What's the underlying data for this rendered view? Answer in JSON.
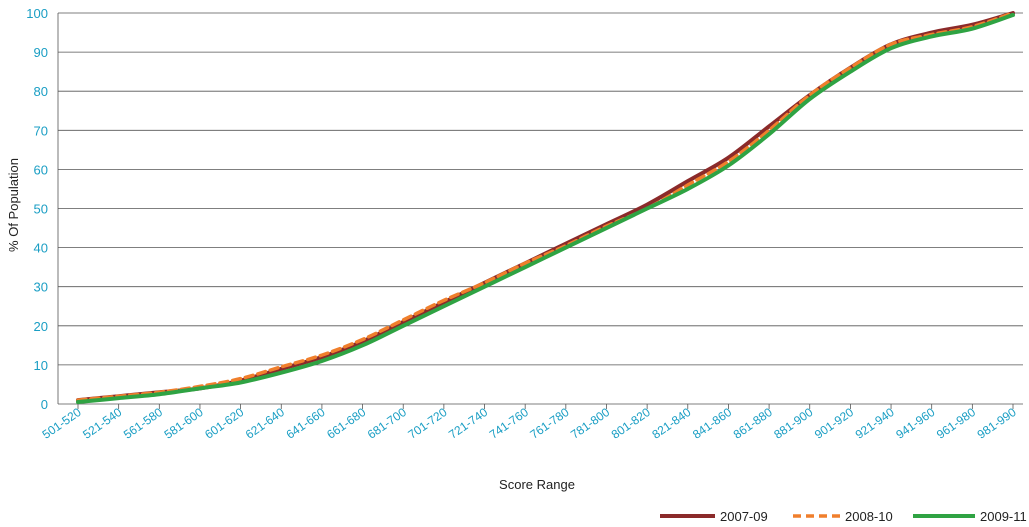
{
  "chart_data": {
    "type": "line",
    "title": "",
    "xlabel": "Score Range",
    "ylabel": "% Of Population",
    "ylim": [
      0,
      100
    ],
    "yticks": [
      0,
      10,
      20,
      30,
      40,
      50,
      60,
      70,
      80,
      90,
      100
    ],
    "grid": true,
    "legend_position": "bottom-right",
    "categories": [
      "501-520",
      "521-540",
      "561-580",
      "581-600",
      "601-620",
      "621-640",
      "641-660",
      "661-680",
      "681-700",
      "701-720",
      "721-740",
      "741-760",
      "761-780",
      "781-800",
      "801-820",
      "821-840",
      "841-860",
      "861-880",
      "881-900",
      "901-920",
      "921-940",
      "941-960",
      "961-980",
      "981-990"
    ],
    "series": [
      {
        "name": "2007-09",
        "color": "#8b2a2a",
        "dash": "solid",
        "values": [
          1,
          2,
          3,
          4,
          6,
          9,
          12,
          16,
          21,
          26,
          31,
          36,
          41,
          46,
          51,
          57,
          63,
          71,
          79,
          86,
          92,
          95,
          97,
          100
        ]
      },
      {
        "name": "2008-10",
        "color": "#f07f2c",
        "dash": "dashed",
        "values": [
          1,
          2,
          3,
          4.5,
          6.5,
          9.5,
          12.5,
          16.5,
          21.5,
          26.5,
          31,
          36,
          40.5,
          45.5,
          50,
          56,
          62,
          70,
          79,
          86,
          92,
          94.5,
          96.5,
          100
        ]
      },
      {
        "name": "2009-11",
        "color": "#2fa343",
        "dash": "solid",
        "values": [
          0.5,
          1.5,
          2.5,
          4,
          5.5,
          8,
          11,
          15,
          20,
          25,
          30,
          35,
          40,
          45,
          50,
          55,
          61,
          69,
          78,
          85,
          91,
          94,
          96,
          99.5
        ]
      }
    ]
  }
}
